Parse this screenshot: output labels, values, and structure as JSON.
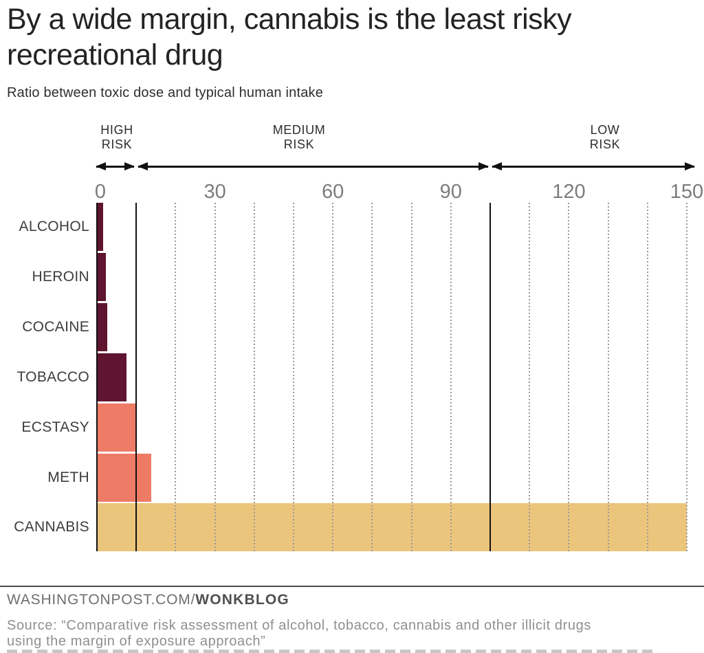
{
  "header": {
    "title_line1": "By a wide margin, cannabis is the least risky",
    "title_line2": "recreational drug",
    "subtitle": "Ratio between toxic dose and typical human intake"
  },
  "chart_data": {
    "type": "bar",
    "orientation": "horizontal",
    "title": "By a wide margin, cannabis is the least risky recreational drug",
    "subtitle": "Ratio between toxic dose and typical human intake",
    "categories": [
      "ALCOHOL",
      "HEROIN",
      "COCAINE",
      "TOBACCO",
      "ECSTASY",
      "METH",
      "CANNABIS"
    ],
    "values": [
      1.5,
      2.2,
      2.7,
      7.5,
      10,
      13.8,
      150
    ],
    "bar_colors": [
      "#5f1430",
      "#5f1430",
      "#5f1430",
      "#5f1430",
      "#ee7b66",
      "#ee7b66",
      "#ecc57c"
    ],
    "xlim": [
      0,
      150
    ],
    "x_ticks": [
      0,
      30,
      60,
      90,
      120,
      150
    ],
    "gridline_interval": 10,
    "zone_boundaries": [
      10,
      100
    ],
    "zones": [
      {
        "line1": "HIGH",
        "line2": "RISK",
        "from": 0,
        "to": 10
      },
      {
        "line1": "MEDIUM",
        "line2": "RISK",
        "from": 10,
        "to": 100
      },
      {
        "line1": "LOW",
        "line2": "RISK",
        "from": 100,
        "to": 150
      }
    ],
    "grid": "vertical-dotted",
    "legend": false
  },
  "footer": {
    "site": "WASHINGTONPOST.COM/",
    "blog": "WONKBLOG",
    "source_line1": "Source: “Comparative risk assessment of alcohol, tobacco, cannabis and other illicit drugs",
    "source_line2": "using the margin of exposure approach”"
  },
  "colors": {
    "bar_dark": "#5f1430",
    "bar_salmon": "#ee7b66",
    "bar_tan": "#ecc57c",
    "axis_line": "#111111",
    "gridline": "#9a9a9a",
    "tick_label": "#7c7c7c",
    "title_text": "#232323",
    "footer_gray": "#6f6f6f",
    "source_gray": "#8f8f8f"
  }
}
